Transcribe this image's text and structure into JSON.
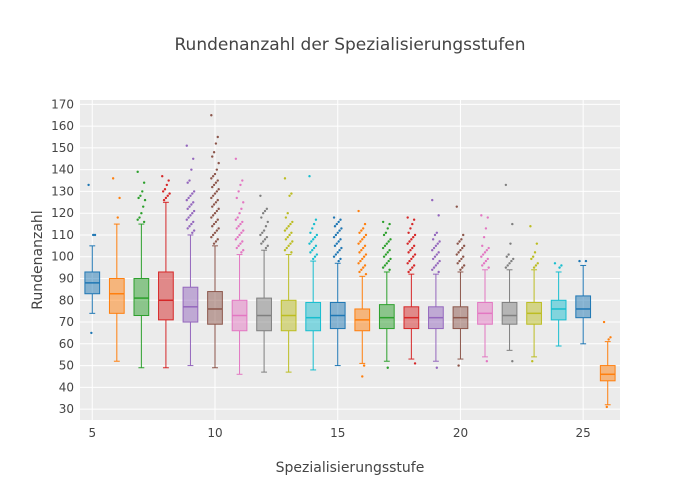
{
  "chart_data": {
    "type": "box",
    "title": "Rundenanzahl der Spezialisierungsstufen",
    "xlabel": "Spezialisierungsstufe",
    "ylabel": "Rundenanzahl",
    "xlim": [
      4.5,
      26.5
    ],
    "ylim": [
      25,
      172
    ],
    "xticks": [
      5,
      10,
      15,
      20,
      25
    ],
    "yticks": [
      30,
      40,
      50,
      60,
      70,
      80,
      90,
      100,
      110,
      120,
      130,
      140,
      150,
      160,
      170
    ],
    "boxes": [
      {
        "x": 5,
        "color": "#1f77b4",
        "q1": 83,
        "median": 88,
        "q3": 93,
        "whisker_low": 74,
        "whisker_high": 105,
        "outliers": [
          133,
          110,
          110,
          65
        ]
      },
      {
        "x": 6,
        "color": "#ff7f0e",
        "q1": 74,
        "median": 83,
        "q3": 90,
        "whisker_low": 52,
        "whisker_high": 115,
        "outliers": [
          136,
          127,
          118
        ]
      },
      {
        "x": 7,
        "color": "#2ca02c",
        "q1": 73,
        "median": 81,
        "q3": 90,
        "whisker_low": 49,
        "whisker_high": 115,
        "outliers": [
          139,
          134,
          130,
          128,
          127,
          126,
          123,
          120,
          118,
          117,
          116
        ]
      },
      {
        "x": 8,
        "color": "#d62728",
        "q1": 71,
        "median": 80,
        "q3": 93,
        "whisker_low": 49,
        "whisker_high": 125,
        "outliers": [
          137,
          135,
          133,
          131,
          130,
          129,
          128,
          127,
          126
        ]
      },
      {
        "x": 9,
        "color": "#9467bd",
        "q1": 70,
        "median": 77,
        "q3": 86,
        "whisker_low": 50,
        "whisker_high": 110,
        "outliers": [
          151,
          145,
          140,
          135,
          134,
          130,
          129,
          128,
          127,
          126,
          125,
          124,
          123,
          122,
          121,
          120,
          119,
          118,
          117,
          116,
          115,
          114,
          113,
          112,
          111
        ]
      },
      {
        "x": 10,
        "color": "#8c564b",
        "q1": 69,
        "median": 76,
        "q3": 84,
        "whisker_low": 49,
        "whisker_high": 105,
        "outliers": [
          165,
          155,
          152,
          148,
          146,
          143,
          140,
          138,
          137,
          136,
          135,
          134,
          133,
          132,
          131,
          130,
          129,
          128,
          127,
          126,
          125,
          124,
          123,
          122,
          121,
          120,
          119,
          118,
          117,
          116,
          115,
          114,
          113,
          112,
          111,
          110,
          109,
          108,
          107,
          106
        ]
      },
      {
        "x": 11,
        "color": "#e377c2",
        "q1": 66,
        "median": 73,
        "q3": 80,
        "whisker_low": 46,
        "whisker_high": 101,
        "outliers": [
          145,
          135,
          133,
          130,
          127,
          125,
          122,
          120,
          118,
          117,
          116,
          115,
          114,
          113,
          112,
          111,
          110,
          109,
          108,
          107,
          106,
          105,
          104,
          103,
          102
        ]
      },
      {
        "x": 12,
        "color": "#7f7f7f",
        "q1": 66,
        "median": 73,
        "q3": 81,
        "whisker_low": 47,
        "whisker_high": 103,
        "outliers": [
          128,
          122,
          121,
          120,
          118,
          116,
          114,
          112,
          111,
          110,
          109,
          108,
          107,
          106,
          105,
          104
        ]
      },
      {
        "x": 13,
        "color": "#bcbd22",
        "q1": 66,
        "median": 73,
        "q3": 80,
        "whisker_low": 47,
        "whisker_high": 101,
        "outliers": [
          136,
          129,
          128,
          120,
          118,
          116,
          115,
          114,
          113,
          112,
          111,
          110,
          109,
          108,
          107,
          106,
          105,
          104,
          103,
          102
        ]
      },
      {
        "x": 14,
        "color": "#17becf",
        "q1": 66,
        "median": 72,
        "q3": 79,
        "whisker_low": 48,
        "whisker_high": 98,
        "outliers": [
          137,
          117,
          115,
          113,
          111,
          110,
          109,
          108,
          107,
          106,
          105,
          104,
          103,
          102,
          101,
          100,
          99
        ]
      },
      {
        "x": 15,
        "color": "#1f77b4",
        "q1": 67,
        "median": 73,
        "q3": 79,
        "whisker_low": 50,
        "whisker_high": 97,
        "outliers": [
          118,
          117,
          116,
          115,
          114,
          113,
          112,
          111,
          110,
          109,
          108,
          107,
          106,
          105,
          104,
          103,
          102,
          101,
          100,
          99,
          98
        ]
      },
      {
        "x": 16,
        "color": "#ff7f0e",
        "q1": 66,
        "median": 71,
        "q3": 76,
        "whisker_low": 51,
        "whisker_high": 91,
        "outliers": [
          121,
          115,
          113,
          112,
          111,
          110,
          109,
          108,
          107,
          106,
          105,
          104,
          103,
          102,
          101,
          100,
          99,
          98,
          97,
          96,
          95,
          94,
          93,
          92,
          50,
          45
        ]
      },
      {
        "x": 17,
        "color": "#2ca02c",
        "q1": 67,
        "median": 72,
        "q3": 78,
        "whisker_low": 52,
        "whisker_high": 93,
        "outliers": [
          116,
          115,
          113,
          111,
          110,
          108,
          107,
          106,
          105,
          104,
          103,
          102,
          101,
          100,
          99,
          98,
          97,
          96,
          95,
          94,
          49
        ]
      },
      {
        "x": 18,
        "color": "#d62728",
        "q1": 67,
        "median": 72,
        "q3": 77,
        "whisker_low": 53,
        "whisker_high": 92,
        "outliers": [
          118,
          117,
          115,
          113,
          111,
          110,
          109,
          108,
          107,
          106,
          105,
          104,
          103,
          102,
          101,
          100,
          99,
          98,
          97,
          96,
          95,
          94,
          93,
          51
        ]
      },
      {
        "x": 19,
        "color": "#9467bd",
        "q1": 67,
        "median": 72,
        "q3": 77,
        "whisker_low": 52,
        "whisker_high": 92,
        "outliers": [
          126,
          119,
          111,
          110,
          108,
          107,
          106,
          105,
          104,
          103,
          102,
          101,
          100,
          99,
          98,
          97,
          96,
          95,
          94,
          93,
          49
        ]
      },
      {
        "x": 20,
        "color": "#8c564b",
        "q1": 67,
        "median": 72,
        "q3": 77,
        "whisker_low": 53,
        "whisker_high": 93,
        "outliers": [
          123,
          110,
          108,
          107,
          106,
          105,
          104,
          103,
          102,
          101,
          100,
          99,
          98,
          97,
          96,
          95,
          94,
          50
        ]
      },
      {
        "x": 21,
        "color": "#e377c2",
        "q1": 69,
        "median": 74,
        "q3": 79,
        "whisker_low": 54,
        "whisker_high": 94,
        "outliers": [
          119,
          118,
          113,
          109,
          105,
          104,
          103,
          102,
          101,
          100,
          99,
          98,
          97,
          96,
          95,
          52
        ]
      },
      {
        "x": 22,
        "color": "#7f7f7f",
        "q1": 69,
        "median": 73,
        "q3": 79,
        "whisker_low": 57,
        "whisker_high": 94,
        "outliers": [
          133,
          115,
          106,
          101,
          100,
          99,
          98,
          97,
          96,
          95,
          52
        ]
      },
      {
        "x": 23,
        "color": "#bcbd22",
        "q1": 69,
        "median": 74,
        "q3": 79,
        "whisker_low": 54,
        "whisker_high": 94,
        "outliers": [
          114,
          106,
          102,
          100,
          99,
          97,
          96,
          95,
          52
        ]
      },
      {
        "x": 24,
        "color": "#17becf",
        "q1": 71,
        "median": 76,
        "q3": 80,
        "whisker_low": 59,
        "whisker_high": 93,
        "outliers": [
          97,
          96,
          95
        ]
      },
      {
        "x": 25,
        "color": "#1f77b4",
        "q1": 72,
        "median": 76,
        "q3": 82,
        "whisker_low": 60,
        "whisker_high": 96,
        "outliers": [
          98,
          98
        ]
      },
      {
        "x": 26,
        "color": "#ff7f0e",
        "q1": 43,
        "median": 46,
        "q3": 50,
        "whisker_low": 32,
        "whisker_high": 61,
        "outliers": [
          70,
          63,
          62,
          31
        ]
      }
    ]
  }
}
